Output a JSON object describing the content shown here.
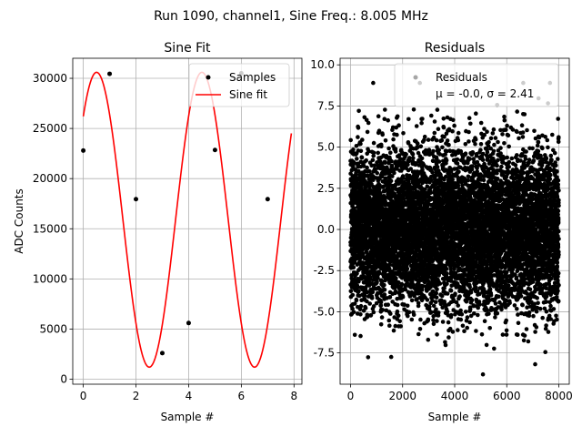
{
  "suptitle": "Run 1090, channel1, Sine Freq.: 8.005 MHz",
  "chart_data": [
    {
      "type": "scatter+line",
      "title": "Sine Fit",
      "xlabel": "Sample #",
      "ylabel": "ADC Counts",
      "xlim": [
        -0.4,
        8.3
      ],
      "ylim": [
        -500,
        32000
      ],
      "xticks": [
        0,
        2,
        4,
        6,
        8
      ],
      "yticks": [
        0,
        5000,
        10000,
        15000,
        20000,
        25000,
        30000
      ],
      "grid": true,
      "legend_position": "top-right",
      "series": [
        {
          "name": "Samples",
          "kind": "points",
          "color": "#000000",
          "x": [
            0,
            1,
            2,
            3,
            4,
            5,
            6,
            7
          ],
          "y": [
            22800,
            30450,
            17950,
            2600,
            5600,
            22850,
            30500,
            17950
          ]
        },
        {
          "name": "Sine fit",
          "kind": "line",
          "color": "#ff0000",
          "function": {
            "amplitude": 14700,
            "offset": 15900,
            "angular_freq": 1.5715,
            "phase": 0.777,
            "x_start": 0,
            "x_end": 7.9
          }
        }
      ]
    },
    {
      "type": "scatter",
      "title": "Residuals",
      "xlabel": "Sample #",
      "ylabel": "",
      "xlim": [
        -400,
        8400
      ],
      "ylim": [
        -9.4,
        10.4
      ],
      "xticks": [
        0,
        2000,
        4000,
        6000,
        8000
      ],
      "yticks": [
        -7.5,
        -5.0,
        -2.5,
        0.0,
        2.5,
        5.0,
        7.5,
        10.0
      ],
      "grid": true,
      "legend_position": "top-right",
      "series": [
        {
          "name": "Residuals",
          "legend_line2": "μ = -0.0, σ = 2.41",
          "mean": -0.0,
          "sigma": 2.41,
          "n_points": 8000,
          "color": "#000000"
        }
      ]
    }
  ]
}
